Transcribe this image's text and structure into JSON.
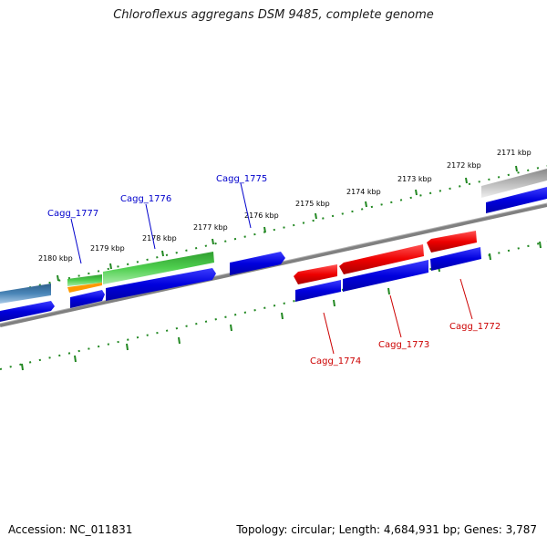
{
  "title": "Chloroflexus aggregans DSM 9485, complete genome",
  "footer": {
    "accession_label": "Accession:",
    "accession_value": "NC_011831",
    "topology_label": "Topology:",
    "topology_value": "circular",
    "length_label": "Length:",
    "length_value": "4,684,931 bp",
    "genes_label": "Genes:",
    "genes_value": "3,787"
  },
  "scale_labels": [
    "2171 kbp",
    "2172 kbp",
    "2173 kbp",
    "2174 kbp",
    "2175 kbp",
    "2176 kbp",
    "2177 kbp",
    "2178 kbp",
    "2179 kbp",
    "2180 kbp"
  ],
  "gene_labels_forward": [
    "Cagg_1775",
    "Cagg_1776",
    "Cagg_1777"
  ],
  "gene_labels_reverse": [
    "Cagg_1772",
    "Cagg_1773",
    "Cagg_1774"
  ],
  "colors": {
    "forward_label": "#0000cc",
    "reverse_label": "#cc0000",
    "cds_blue": "#0000dd",
    "cds_red": "#ee0000",
    "cds_green": "#33bb33",
    "cds_orange": "#ff9900",
    "cds_steel": "#4a86b8",
    "cds_gray": "#bbbbbb",
    "backbone": "#808080",
    "ticks": "#228822"
  }
}
